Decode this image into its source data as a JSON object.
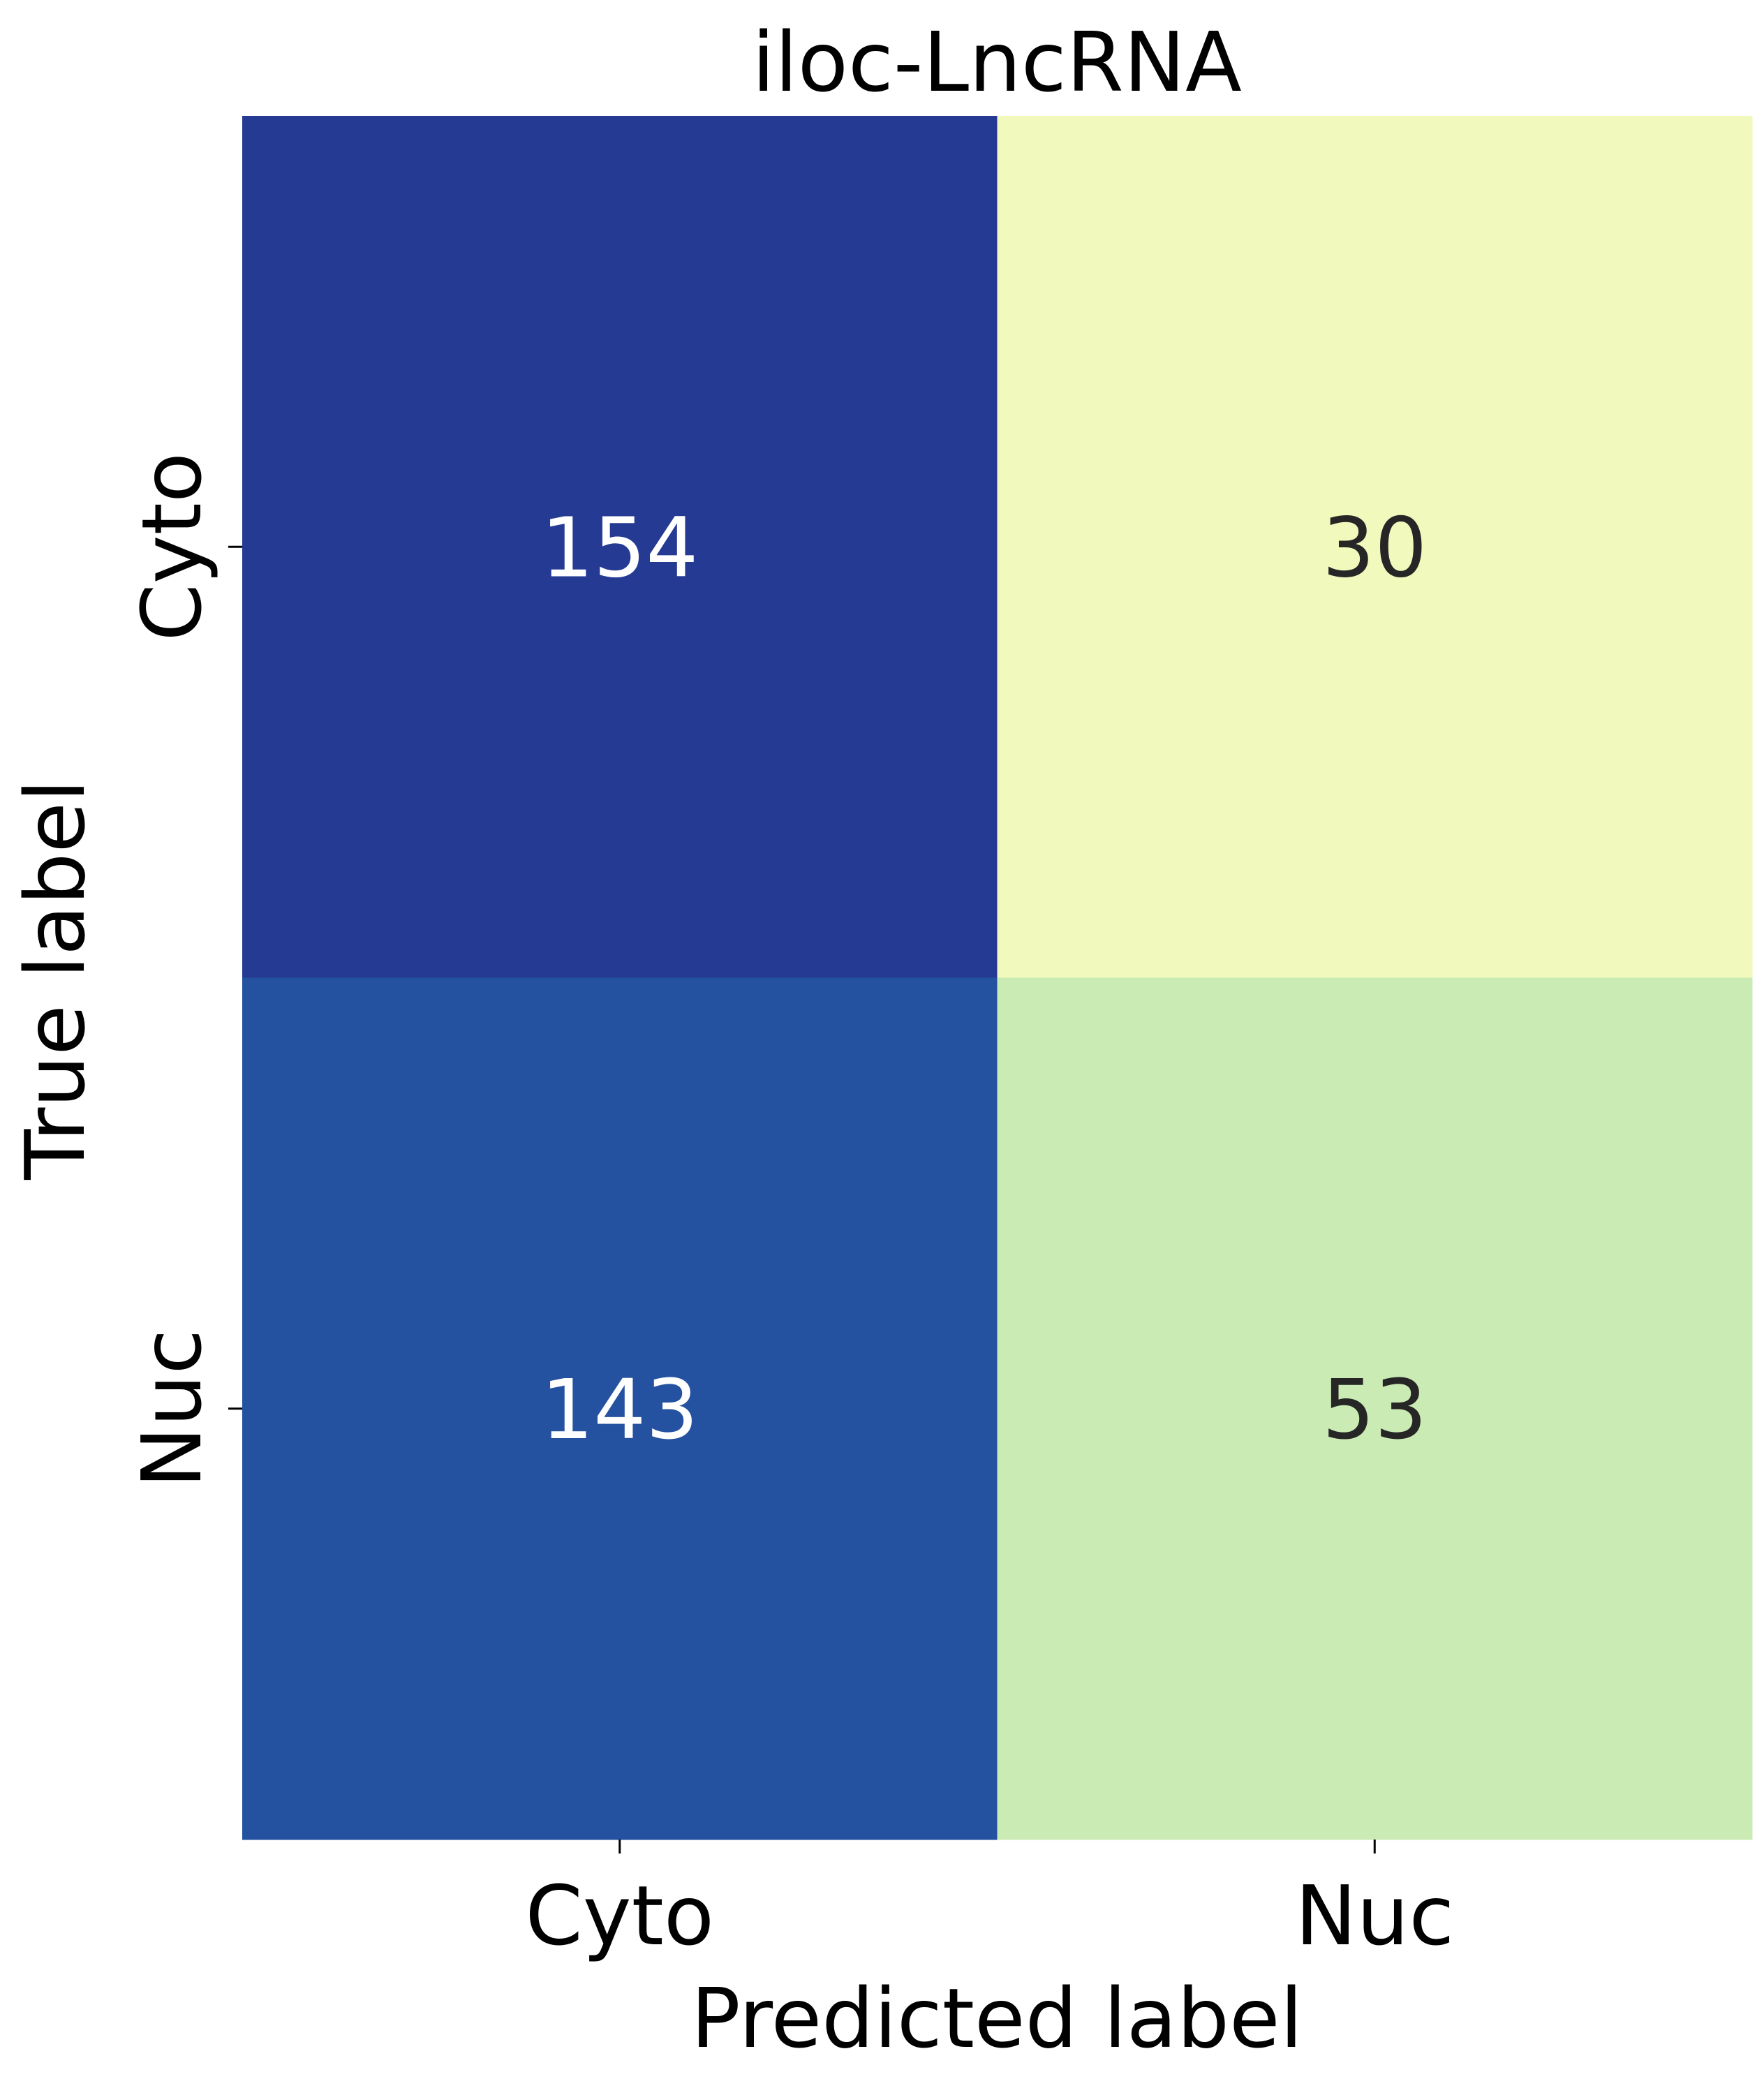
{
  "chart_data": {
    "type": "heatmap",
    "title": "iloc-LncRNA",
    "xlabel": "Predicted label",
    "ylabel": "True label",
    "x_categories": [
      "Cyto",
      "Nuc"
    ],
    "y_categories": [
      "Cyto",
      "Nuc"
    ],
    "values": [
      [
        154,
        30
      ],
      [
        143,
        53
      ]
    ],
    "cell_colors": [
      [
        "#253a93",
        "#f1f9bc"
      ],
      [
        "#2452a0",
        "#cbebb4"
      ]
    ],
    "text_colors": [
      [
        "#ffffff",
        "#262626"
      ],
      [
        "#ffffff",
        "#262626"
      ]
    ],
    "colormap": "YlGnBu",
    "colorbar": false,
    "grid": false,
    "legend": "none"
  }
}
